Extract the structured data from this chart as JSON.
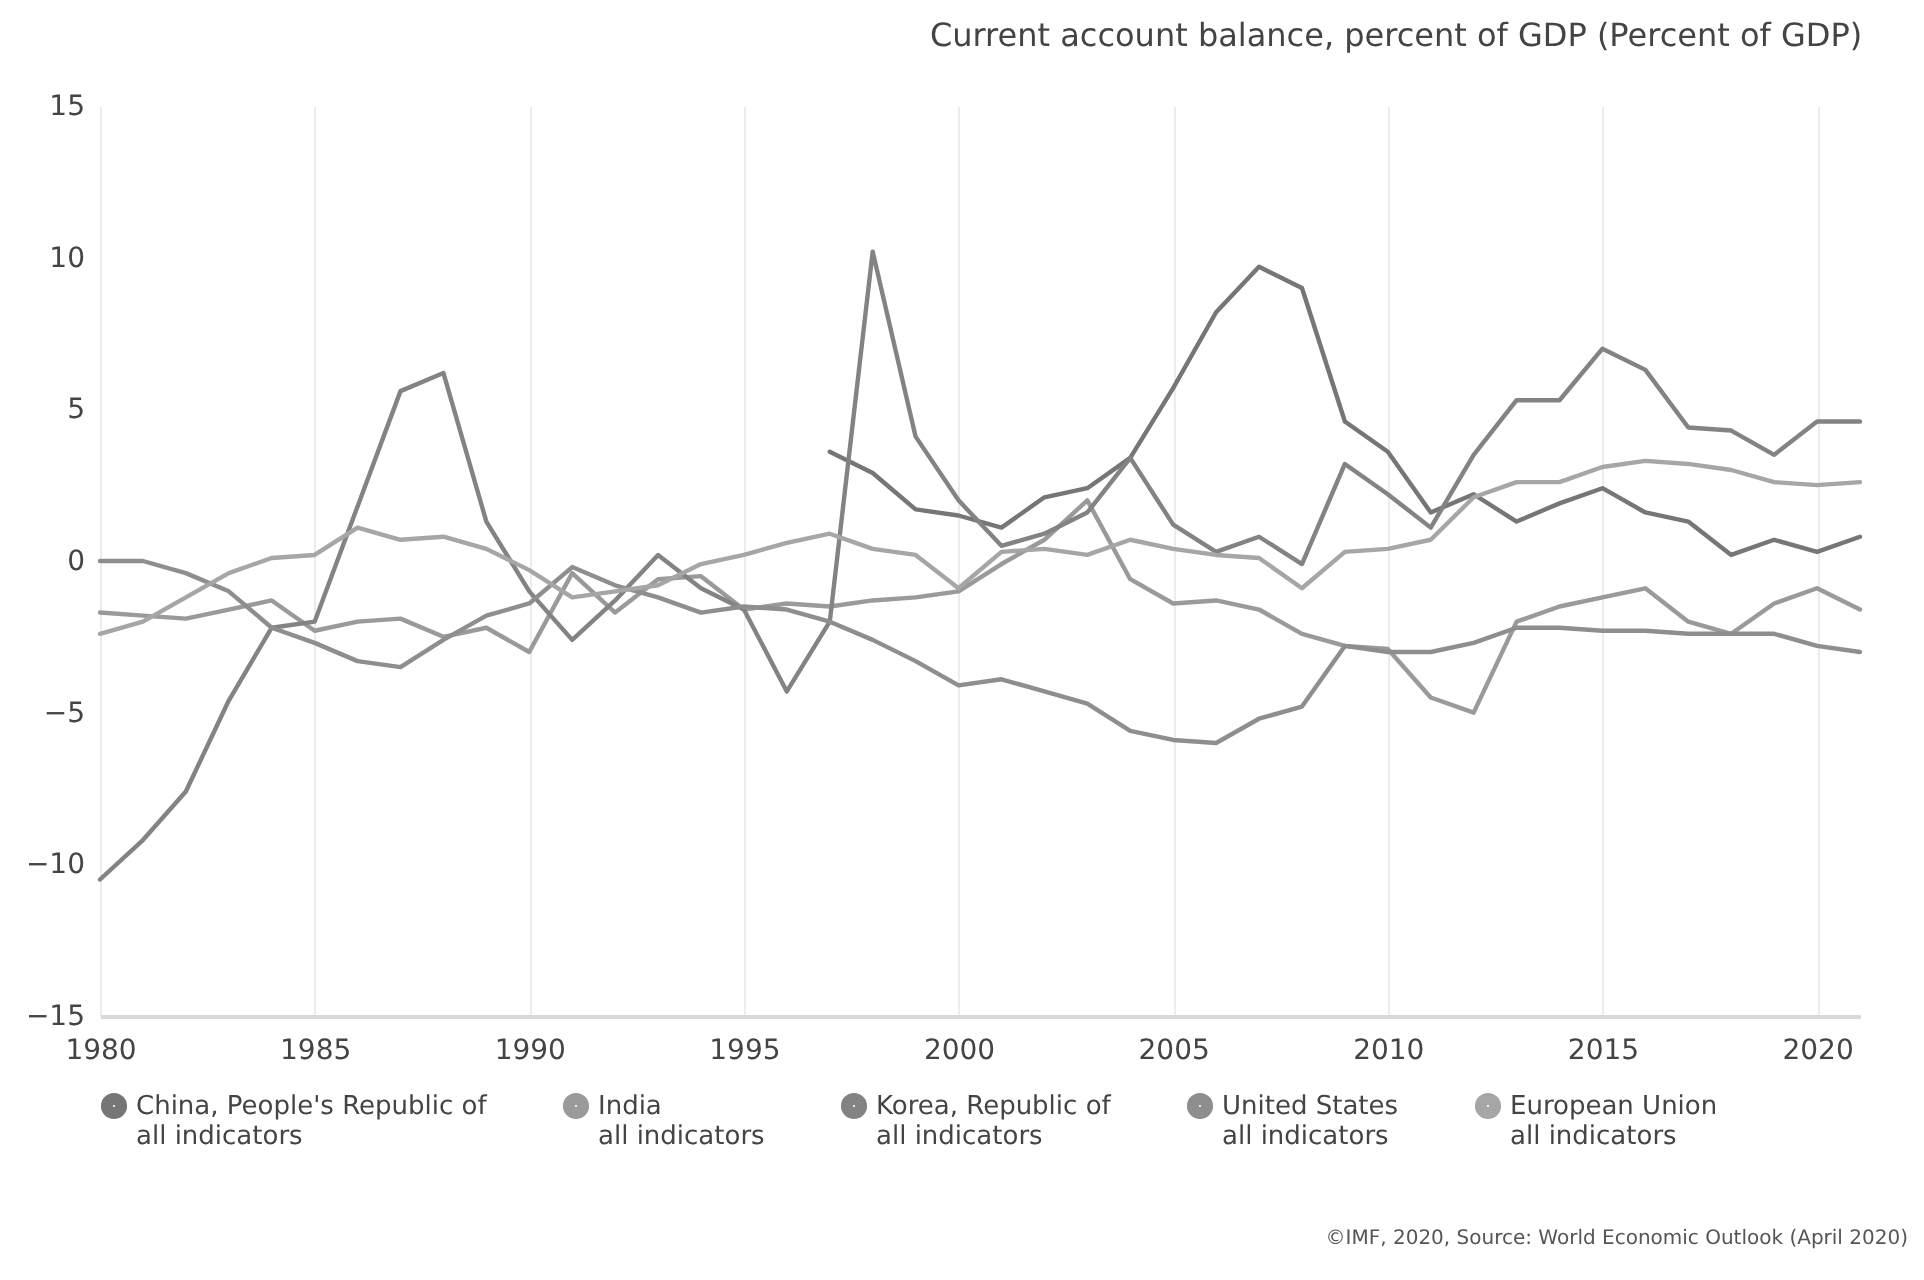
{
  "chart_data": {
    "type": "line",
    "title": "Current account balance, percent of GDP (Percent of GDP)",
    "annotations": [
      "©IMF, 2020, Source: World Economic Outlook (April 2020)"
    ],
    "x": [
      1980,
      1981,
      1982,
      1983,
      1984,
      1985,
      1986,
      1987,
      1988,
      1989,
      1990,
      1991,
      1992,
      1993,
      1994,
      1995,
      1996,
      1997,
      1998,
      1999,
      2000,
      2001,
      2002,
      2003,
      2004,
      2005,
      2006,
      2007,
      2008,
      2009,
      2010,
      2011,
      2012,
      2013,
      2014,
      2015,
      2016,
      2017,
      2018,
      2019,
      2020,
      2021
    ],
    "series": [
      {
        "name": "China, People's Republic of\nall indicators",
        "color": "#767676",
        "values": [
          null,
          null,
          null,
          null,
          null,
          null,
          null,
          null,
          null,
          null,
          null,
          null,
          null,
          null,
          null,
          null,
          null,
          3.6,
          2.9,
          1.7,
          1.5,
          1.1,
          2.1,
          2.4,
          3.4,
          5.7,
          8.2,
          9.7,
          9.0,
          4.6,
          3.6,
          1.6,
          2.2,
          1.3,
          1.9,
          2.4,
          1.6,
          1.3,
          0.2,
          0.7,
          0.3,
          0.8
        ]
      },
      {
        "name": "India\nall indicators",
        "color": "#9a9a9a",
        "values": [
          -1.7,
          -1.8,
          -1.9,
          -1.6,
          -1.3,
          -2.3,
          -2.0,
          -1.9,
          -2.5,
          -2.2,
          -3.0,
          -0.4,
          -1.7,
          -0.6,
          -0.5,
          -1.6,
          -1.4,
          -1.5,
          -1.3,
          -1.2,
          -1.0,
          -0.1,
          0.7,
          2.0,
          -0.6,
          -1.4,
          -1.3,
          -1.6,
          -2.4,
          -2.8,
          -2.9,
          -4.5,
          -5.0,
          -2.0,
          -1.5,
          -1.2,
          -0.9,
          -2.0,
          -2.4,
          -1.4,
          -0.9,
          -1.6
        ]
      },
      {
        "name": "Korea, Republic of\nall indicators",
        "color": "#838383",
        "values": [
          -10.5,
          -9.2,
          -7.6,
          -4.6,
          -2.2,
          -2.0,
          1.8,
          5.6,
          6.2,
          1.3,
          -1.0,
          -2.6,
          -1.3,
          0.2,
          -0.9,
          -1.6,
          -4.3,
          -2.0,
          10.2,
          4.1,
          2.0,
          0.5,
          0.9,
          1.6,
          3.4,
          1.2,
          0.3,
          0.8,
          -0.1,
          3.2,
          2.2,
          1.1,
          3.5,
          5.3,
          5.3,
          7.0,
          6.3,
          4.4,
          4.3,
          3.5,
          4.6,
          4.6
        ]
      },
      {
        "name": "United States\nall indicators",
        "color": "#8e8e8e",
        "values": [
          0.0,
          0.0,
          -0.4,
          -1.0,
          -2.2,
          -2.7,
          -3.3,
          -3.5,
          -2.6,
          -1.8,
          -1.4,
          -0.2,
          -0.8,
          -1.2,
          -1.7,
          -1.5,
          -1.6,
          -2.0,
          -2.6,
          -3.3,
          -4.1,
          -3.9,
          -4.3,
          -4.7,
          -5.6,
          -5.9,
          -6.0,
          -5.2,
          -4.8,
          -2.8,
          -3.0,
          -3.0,
          -2.7,
          -2.2,
          -2.2,
          -2.3,
          -2.3,
          -2.4,
          -2.4,
          -2.4,
          -2.8,
          -3.0
        ]
      },
      {
        "name": "European Union\nall indicators",
        "color": "#a6a6a6",
        "values": [
          -2.4,
          -2.0,
          -1.2,
          -0.4,
          0.1,
          0.2,
          1.1,
          0.7,
          0.8,
          0.4,
          -0.3,
          -1.2,
          -1.0,
          -0.8,
          -0.1,
          0.2,
          0.6,
          0.9,
          0.4,
          0.2,
          -0.9,
          0.3,
          0.4,
          0.2,
          0.7,
          0.4,
          0.2,
          0.1,
          -0.9,
          0.3,
          0.4,
          0.7,
          2.1,
          2.6,
          2.6,
          3.1,
          3.3,
          3.2,
          3.0,
          2.6,
          2.5,
          2.6
        ]
      }
    ],
    "xlim": [
      1980,
      2021
    ],
    "xticks": [
      1980,
      1985,
      1990,
      1995,
      2000,
      2005,
      2010,
      2015,
      2020
    ],
    "ylim": [
      -15,
      15
    ],
    "yticks": [
      -15,
      -10,
      -5,
      0,
      5,
      10,
      15
    ],
    "grid": "x",
    "legend": "bottom",
    "line_style": "solid"
  }
}
